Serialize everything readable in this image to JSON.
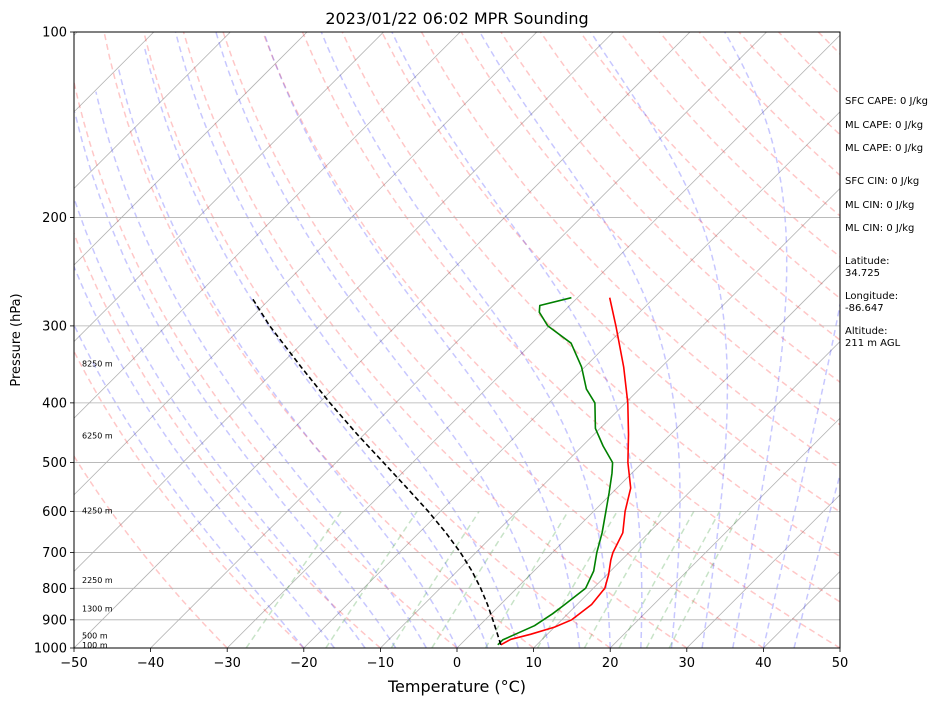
{
  "chart_data": {
    "type": "line",
    "title": "2023/01/22 06:02 MPR Sounding",
    "xlabel": "Temperature (°C)",
    "ylabel": "Pressure (hPa)",
    "xlim": [
      -50,
      50
    ],
    "ylim": [
      1000,
      100
    ],
    "y_scale": "log",
    "skew_degrees": 45,
    "x_ticks": [
      {
        "value": -50,
        "label": "−50"
      },
      {
        "value": -40,
        "label": "−40"
      },
      {
        "value": -30,
        "label": "−30"
      },
      {
        "value": -20,
        "label": "−20"
      },
      {
        "value": -10,
        "label": "−10"
      },
      {
        "value": 0,
        "label": "0"
      },
      {
        "value": 10,
        "label": "10"
      },
      {
        "value": 20,
        "label": "20"
      },
      {
        "value": 30,
        "label": "30"
      },
      {
        "value": 40,
        "label": "40"
      },
      {
        "value": 50,
        "label": "50"
      }
    ],
    "y_ticks": [
      {
        "value": 100,
        "label": "100"
      },
      {
        "value": 200,
        "label": "200"
      },
      {
        "value": 300,
        "label": "300"
      },
      {
        "value": 400,
        "label": "400"
      },
      {
        "value": 500,
        "label": "500"
      },
      {
        "value": 600,
        "label": "600"
      },
      {
        "value": 700,
        "label": "700"
      },
      {
        "value": 800,
        "label": "800"
      },
      {
        "value": 900,
        "label": "900"
      },
      {
        "value": 1000,
        "label": "1000"
      }
    ],
    "grid": true,
    "series": [
      {
        "color": "#ff0000",
        "points": [
          {
            "p": 988,
            "t": 5.3
          },
          {
            "p": 968,
            "t": 5.9
          },
          {
            "p": 950,
            "t": 7.8
          },
          {
            "p": 925,
            "t": 10.0
          },
          {
            "p": 900,
            "t": 11.3
          },
          {
            "p": 850,
            "t": 11.9
          },
          {
            "p": 800,
            "t": 11.5
          },
          {
            "p": 760,
            "t": 10.2
          },
          {
            "p": 720,
            "t": 8.6
          },
          {
            "p": 700,
            "t": 7.9
          },
          {
            "p": 650,
            "t": 6.6
          },
          {
            "p": 600,
            "t": 4.1
          },
          {
            "p": 550,
            "t": 1.8
          },
          {
            "p": 500,
            "t": -1.9
          },
          {
            "p": 450,
            "t": -5.5
          },
          {
            "p": 400,
            "t": -9.7
          },
          {
            "p": 350,
            "t": -14.9
          },
          {
            "p": 300,
            "t": -21.3
          },
          {
            "p": 270,
            "t": -25.8
          }
        ]
      },
      {
        "color": "#008000",
        "points": [
          {
            "p": 988,
            "t": 4.9
          },
          {
            "p": 970,
            "t": 4.9
          },
          {
            "p": 950,
            "t": 5.8
          },
          {
            "p": 920,
            "t": 7.2
          },
          {
            "p": 880,
            "t": 8.0
          },
          {
            "p": 850,
            "t": 8.4
          },
          {
            "p": 800,
            "t": 9.0
          },
          {
            "p": 750,
            "t": 7.8
          },
          {
            "p": 700,
            "t": 5.8
          },
          {
            "p": 650,
            "t": 3.9
          },
          {
            "p": 600,
            "t": 1.6
          },
          {
            "p": 560,
            "t": -0.4
          },
          {
            "p": 520,
            "t": -2.6
          },
          {
            "p": 500,
            "t": -3.9
          },
          {
            "p": 470,
            "t": -7.3
          },
          {
            "p": 440,
            "t": -10.6
          },
          {
            "p": 400,
            "t": -14.0
          },
          {
            "p": 380,
            "t": -16.9
          },
          {
            "p": 350,
            "t": -20.4
          },
          {
            "p": 320,
            "t": -24.9
          },
          {
            "p": 300,
            "t": -30.2
          },
          {
            "p": 285,
            "t": -33.1
          },
          {
            "p": 278,
            "t": -33.9
          },
          {
            "p": 270,
            "t": -30.8
          }
        ]
      },
      {
        "color": "#000000",
        "dashed": true,
        "points": [
          {
            "p": 988,
            "t": 5.3
          },
          {
            "p": 950,
            "t": 3.5
          },
          {
            "p": 900,
            "t": 1.0
          },
          {
            "p": 850,
            "t": -1.7
          },
          {
            "p": 800,
            "t": -4.7
          },
          {
            "p": 750,
            "t": -8.1
          },
          {
            "p": 700,
            "t": -12.0
          },
          {
            "p": 650,
            "t": -16.5
          },
          {
            "p": 600,
            "t": -21.6
          },
          {
            "p": 550,
            "t": -27.4
          },
          {
            "p": 500,
            "t": -33.8
          },
          {
            "p": 450,
            "t": -40.9
          },
          {
            "p": 400,
            "t": -48.6
          },
          {
            "p": 350,
            "t": -57.0
          },
          {
            "p": 300,
            "t": -66.5
          },
          {
            "p": 270,
            "t": -72.5
          }
        ]
      }
    ],
    "height_labels": [
      {
        "p": 345,
        "label": "8250 m"
      },
      {
        "p": 452,
        "label": "6250 m"
      },
      {
        "p": 598,
        "label": "4250 m"
      },
      {
        "p": 775,
        "label": "2250 m"
      },
      {
        "p": 863,
        "label": "1300 m"
      },
      {
        "p": 954,
        "label": "500 m"
      },
      {
        "p": 988,
        "label": "100 m"
      }
    ],
    "reference_lines": {
      "dry_adiabat_color": "#ff0000",
      "moist_adiabat_color": "#0000ff",
      "mixing_ratio_color": "#008000",
      "isotherm_color": "#808080"
    }
  },
  "stats": [
    {
      "label": "SFC CAPE: 0 J/kg"
    },
    {
      "label": "ML CAPE: 0 J/kg"
    },
    {
      "label": "ML CAPE: 0 J/kg"
    },
    {
      "label": "SFC CIN: 0 J/kg"
    },
    {
      "label": "ML CIN: 0 J/kg"
    },
    {
      "label": "ML CIN: 0 J/kg"
    }
  ],
  "location": [
    {
      "label": "Latitude:",
      "value": "34.725"
    },
    {
      "label": "Longitude:",
      "value": "-86.647"
    },
    {
      "label": "Altitude:",
      "value": "211 m AGL"
    }
  ]
}
